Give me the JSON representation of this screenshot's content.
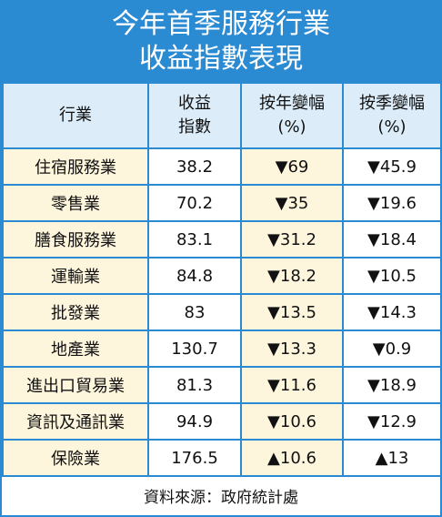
{
  "header": {
    "title": [
      "今年首季服務行業",
      "收益指數表現"
    ]
  },
  "table": {
    "columns": [
      [
        "行業"
      ],
      [
        "收益",
        "指數"
      ],
      [
        "按年變幅",
        "(%)"
      ],
      [
        "按季變幅",
        "(%)"
      ]
    ],
    "rows": [
      [
        "住宿服務業",
        "38.2",
        "▼69",
        "▼45.9"
      ],
      [
        "零售業",
        "70.2",
        "▼35",
        "▼19.6"
      ],
      [
        "膳食服務業",
        "83.1",
        "▼31.2",
        "▼18.4"
      ],
      [
        "運輸業",
        "84.8",
        "▼18.2",
        "▼10.5"
      ],
      [
        "批發業",
        "83",
        "▼13.5",
        "▼14.3"
      ],
      [
        "地產業",
        "130.7",
        "▼13.3",
        "▼0.9"
      ],
      [
        "進出口貿易業",
        "81.3",
        "▼11.6",
        "▼18.9"
      ],
      [
        "資訊及通訊業",
        "94.9",
        "▼10.6",
        "▼12.9"
      ],
      [
        "保險業",
        "176.5",
        "▲10.6",
        "▲13"
      ]
    ]
  },
  "footer": {
    "source": "資料來源：政府統計處"
  }
}
